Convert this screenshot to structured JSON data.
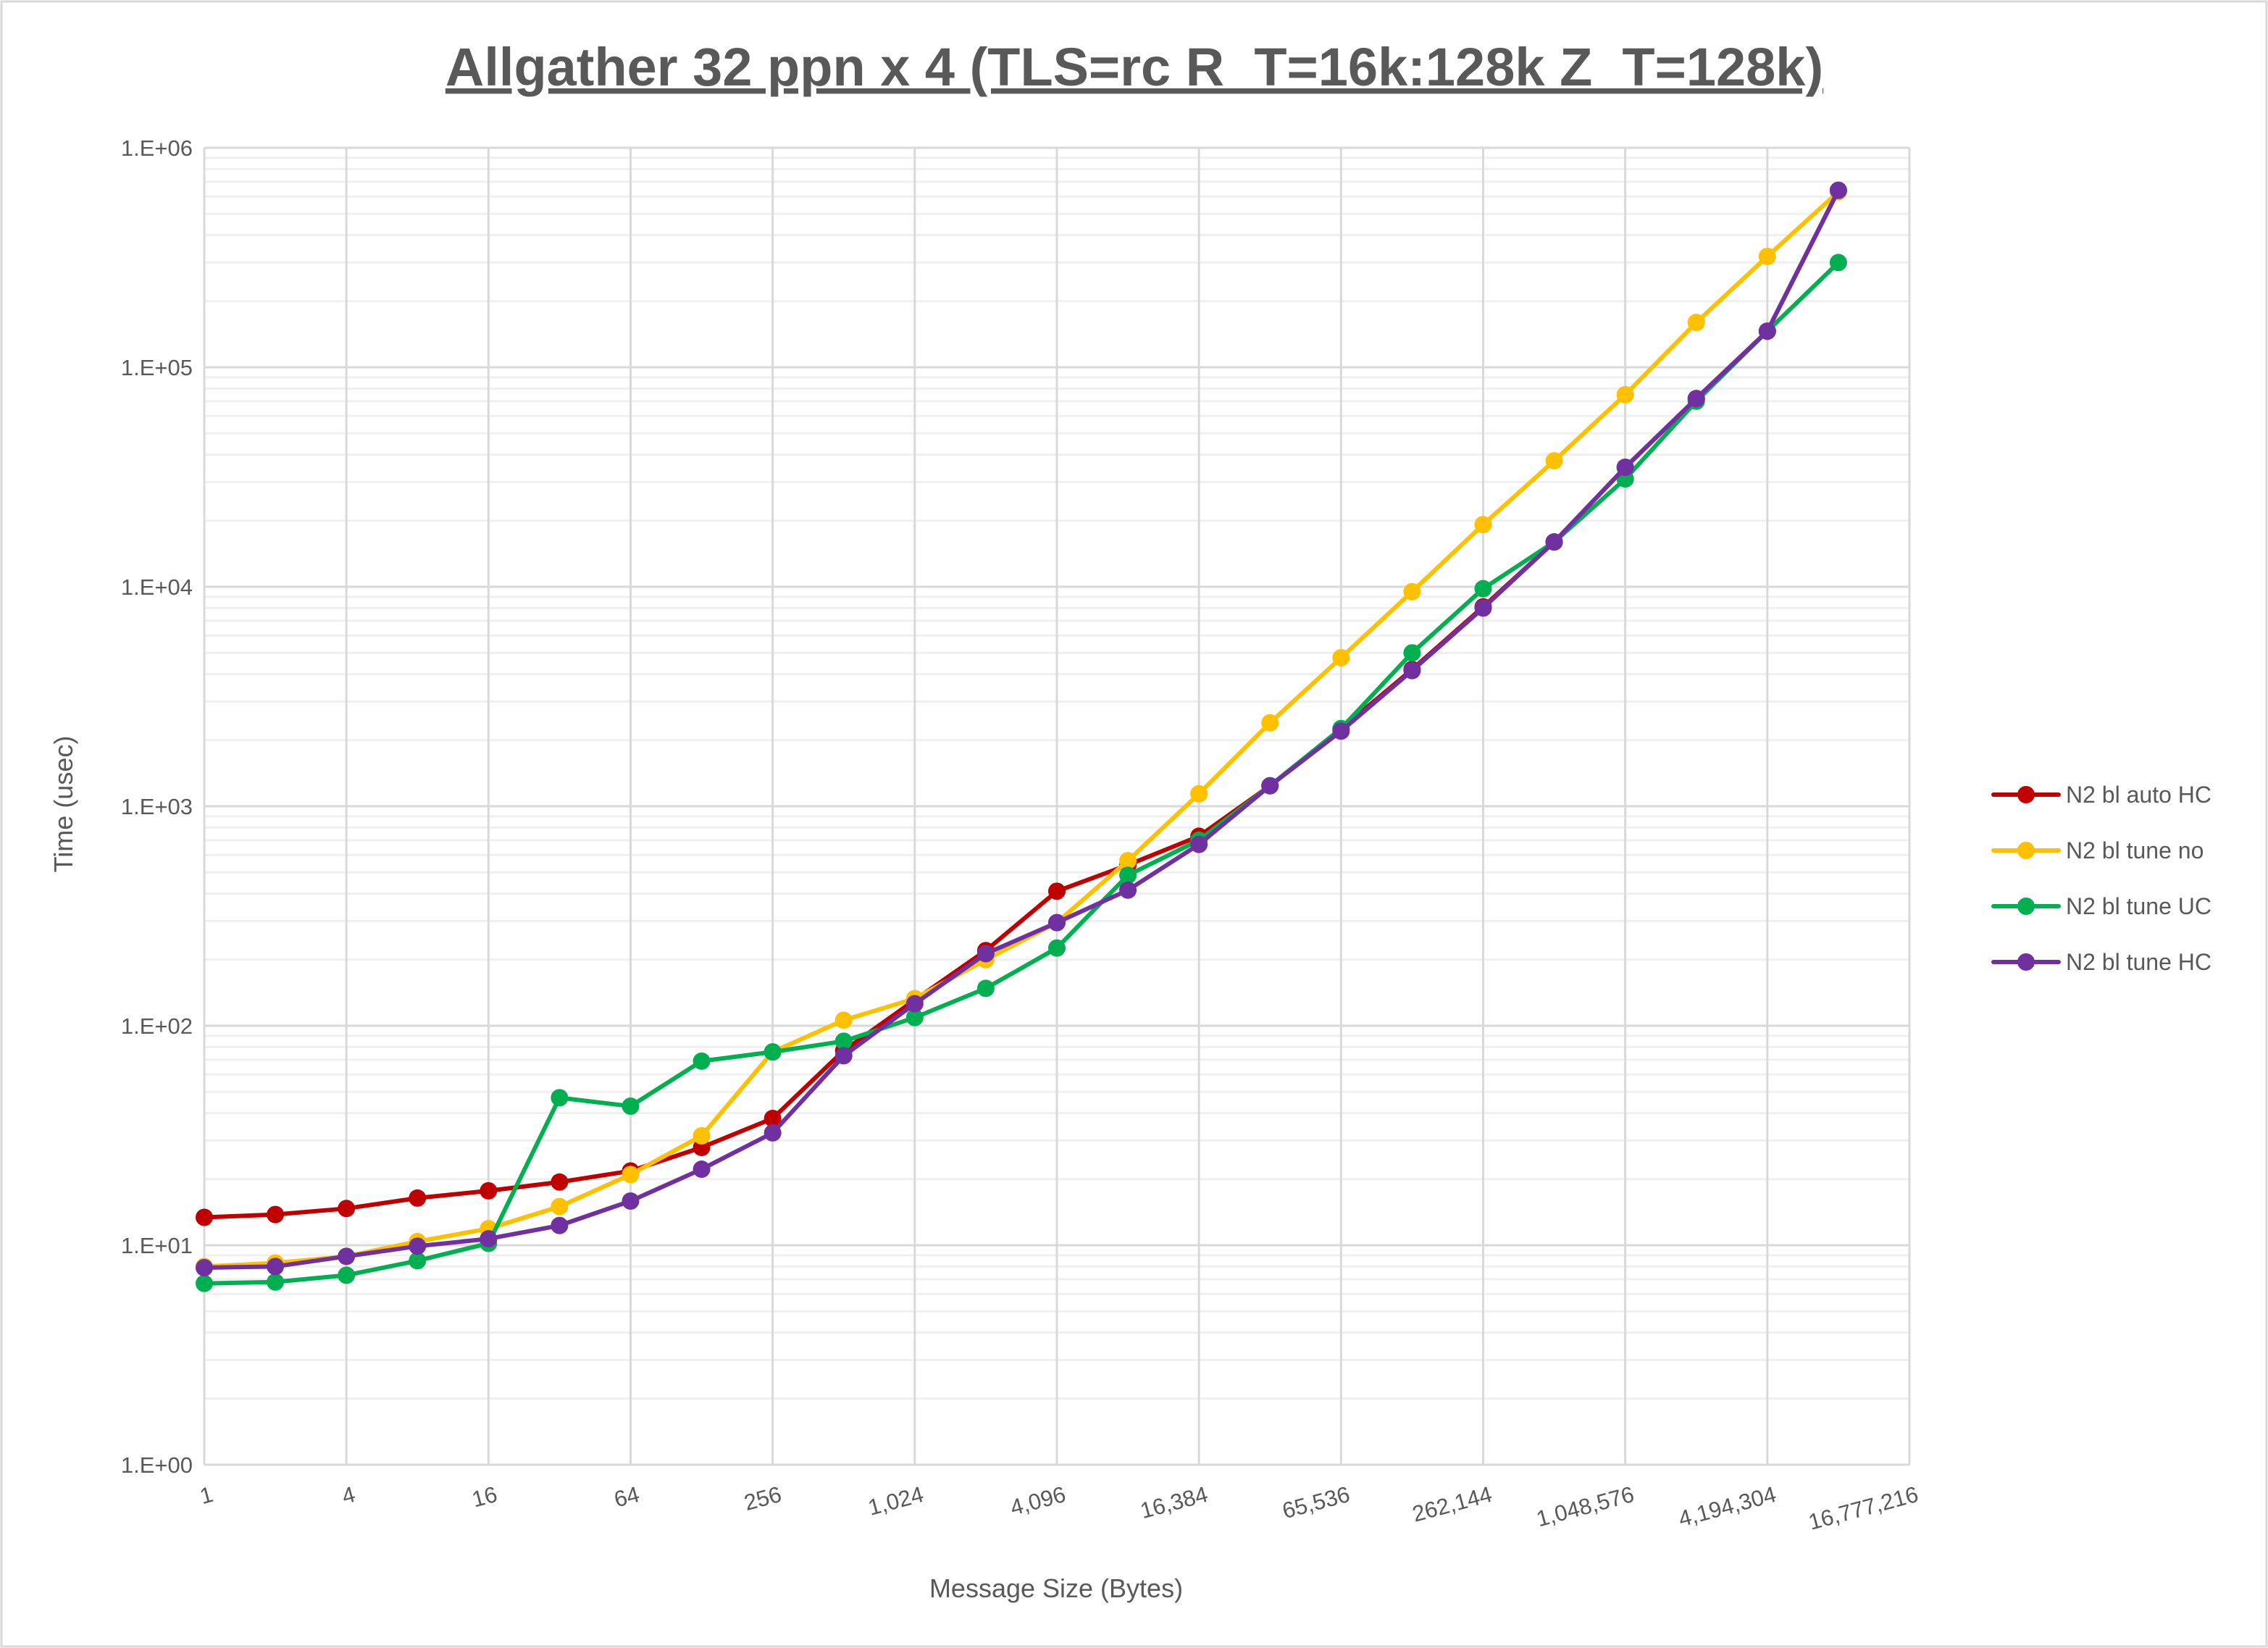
{
  "chart_data": {
    "type": "line",
    "title": "Allgather 32 ppn x 4 (TLS=rc R_T=16k:128k Z_T=128k)",
    "xlabel": "Message Size (Bytes)",
    "ylabel": "Time (usec)",
    "xscale": "log2",
    "yscale": "log10",
    "xlim": [
      1,
      16777216
    ],
    "ylim": [
      1,
      1000000
    ],
    "grid": true,
    "legend_position": "right",
    "x_tick_labels": [
      "1",
      "4",
      "16",
      "64",
      "256",
      "1,024",
      "4,096",
      "16,384",
      "65,536",
      "262,144",
      "1,048,576",
      "4,194,304",
      "16,777,216"
    ],
    "y_tick_labels": [
      "1.E+00",
      "1.E+01",
      "1.E+02",
      "1.E+03",
      "1.E+04",
      "1.E+05",
      "1.E+06"
    ],
    "x": [
      1,
      2,
      4,
      8,
      16,
      32,
      64,
      128,
      256,
      512,
      1024,
      2048,
      4096,
      8192,
      16384,
      32768,
      65536,
      131072,
      262144,
      524288,
      1048576,
      2097152,
      4194304,
      8388608
    ],
    "series": [
      {
        "name": "N2 bl auto HC",
        "color": "#C00000",
        "values": [
          13.4,
          13.8,
          14.7,
          16.4,
          17.7,
          19.4,
          21.8,
          27.9,
          37.8,
          77,
          131,
          220,
          410,
          540,
          730,
          1240,
          2250,
          4200,
          8100,
          16000,
          35000,
          72000,
          146000,
          640000
        ]
      },
      {
        "name": "N2 bl tune no",
        "color": "#FFC000",
        "values": [
          8.0,
          8.3,
          8.9,
          10.4,
          11.9,
          15,
          21,
          31.5,
          76,
          106,
          133,
          200,
          295,
          565,
          1140,
          2400,
          4750,
          9500,
          19200,
          37500,
          75000,
          160000,
          320000,
          630000
        ]
      },
      {
        "name": "N2 bl tune UC",
        "color": "#00B050",
        "values": [
          6.7,
          6.8,
          7.3,
          8.5,
          10.2,
          47,
          43,
          69,
          76,
          85,
          109,
          148,
          226,
          485,
          700,
          1240,
          2260,
          5000,
          9800,
          16000,
          31000,
          70000,
          146000,
          300000
        ]
      },
      {
        "name": "N2 bl tune HC",
        "color": "#7030A0",
        "values": [
          7.9,
          8.0,
          8.9,
          9.9,
          10.7,
          12.3,
          15.9,
          22.2,
          32.5,
          73,
          126,
          213,
          295,
          415,
          670,
          1240,
          2200,
          4150,
          8000,
          16000,
          35000,
          72000,
          146000,
          640000
        ]
      }
    ]
  }
}
